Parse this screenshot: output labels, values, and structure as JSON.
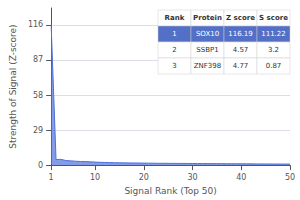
{
  "chart_data": {
    "type": "area",
    "xlabel": "Signal Rank (Top 50)",
    "ylabel": "Strength of Signal (Z-score)",
    "x": [
      1,
      2,
      3,
      4,
      5,
      6,
      7,
      8,
      9,
      10,
      11,
      12,
      13,
      14,
      15,
      16,
      17,
      18,
      19,
      20,
      21,
      22,
      23,
      24,
      25,
      26,
      27,
      28,
      29,
      30,
      31,
      32,
      33,
      34,
      35,
      36,
      37,
      38,
      39,
      40,
      41,
      42,
      43,
      44,
      45,
      46,
      47,
      48,
      49,
      50
    ],
    "values": [
      116.19,
      4.57,
      4.77,
      3.8,
      3.5,
      3.2,
      3.0,
      2.9,
      2.7,
      2.5,
      2.3,
      2.2,
      2.1,
      2.0,
      1.9,
      1.85,
      1.8,
      1.75,
      1.7,
      1.65,
      1.6,
      1.55,
      1.5,
      1.48,
      1.45,
      1.42,
      1.4,
      1.38,
      1.35,
      1.32,
      1.3,
      1.28,
      1.25,
      1.22,
      1.2,
      1.18,
      1.15,
      1.12,
      1.1,
      1.08,
      1.05,
      1.02,
      1.0,
      0.98,
      0.95,
      0.92,
      0.9,
      0.88,
      0.85,
      0.82
    ],
    "xlim": [
      1,
      50
    ],
    "xticks": [
      1,
      10,
      20,
      30,
      40,
      50
    ],
    "ylim": [
      0,
      130
    ],
    "yticks": [
      0,
      29,
      58,
      87,
      116
    ],
    "grid": true,
    "table": {
      "headers": [
        "Rank",
        "Protein",
        "Z score",
        "S score"
      ],
      "rows": [
        [
          "1",
          "SOX10",
          "116.19",
          "111.22"
        ],
        [
          "2",
          "SSBP1",
          "4.57",
          "3.2"
        ],
        [
          "3",
          "ZNF398",
          "4.77",
          "0.87"
        ]
      ]
    }
  }
}
